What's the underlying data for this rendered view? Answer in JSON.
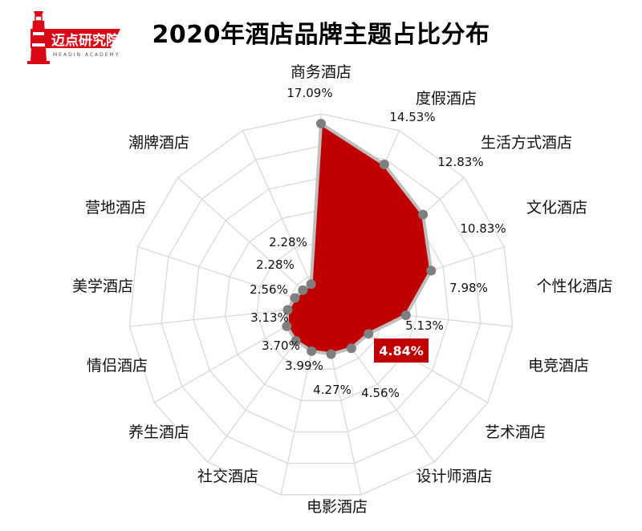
{
  "brand": {
    "logo_text": "迈点研究院",
    "logo_subtext": "MEADIN ACADEMY"
  },
  "chart_data": {
    "type": "radar",
    "title": "2020年酒店品牌主题占比分布",
    "categories": [
      "商务酒店",
      "度假酒店",
      "生活方式酒店",
      "文化酒店",
      "个性化酒店",
      "电竞酒店",
      "艺术酒店",
      "设计师酒店",
      "电影酒店",
      "社交酒店",
      "养生酒店",
      "情侣酒店",
      "美学酒店",
      "营地酒店",
      "潮牌酒店"
    ],
    "values": [
      17.09,
      14.53,
      12.83,
      10.83,
      7.98,
      5.13,
      4.84,
      4.56,
      4.27,
      3.99,
      3.7,
      3.13,
      2.56,
      2.28,
      2.28
    ],
    "value_labels": [
      "17.09%",
      "14.53%",
      "12.83%",
      "10.83%",
      "7.98%",
      "5.13%",
      "4.84%",
      "4.56%",
      "4.27%",
      "3.99%",
      "3.70%",
      "3.13%",
      "2.56%",
      "2.28%",
      "2.28%"
    ],
    "highlight_index": 6,
    "range": [
      0,
      18
    ],
    "grid": true,
    "colors": {
      "fill": "#C00000",
      "outline": "#BFBFBF",
      "marker": "#7F7F7F",
      "grid": "#D9D9D9",
      "highlight_bg": "#C00000"
    }
  }
}
